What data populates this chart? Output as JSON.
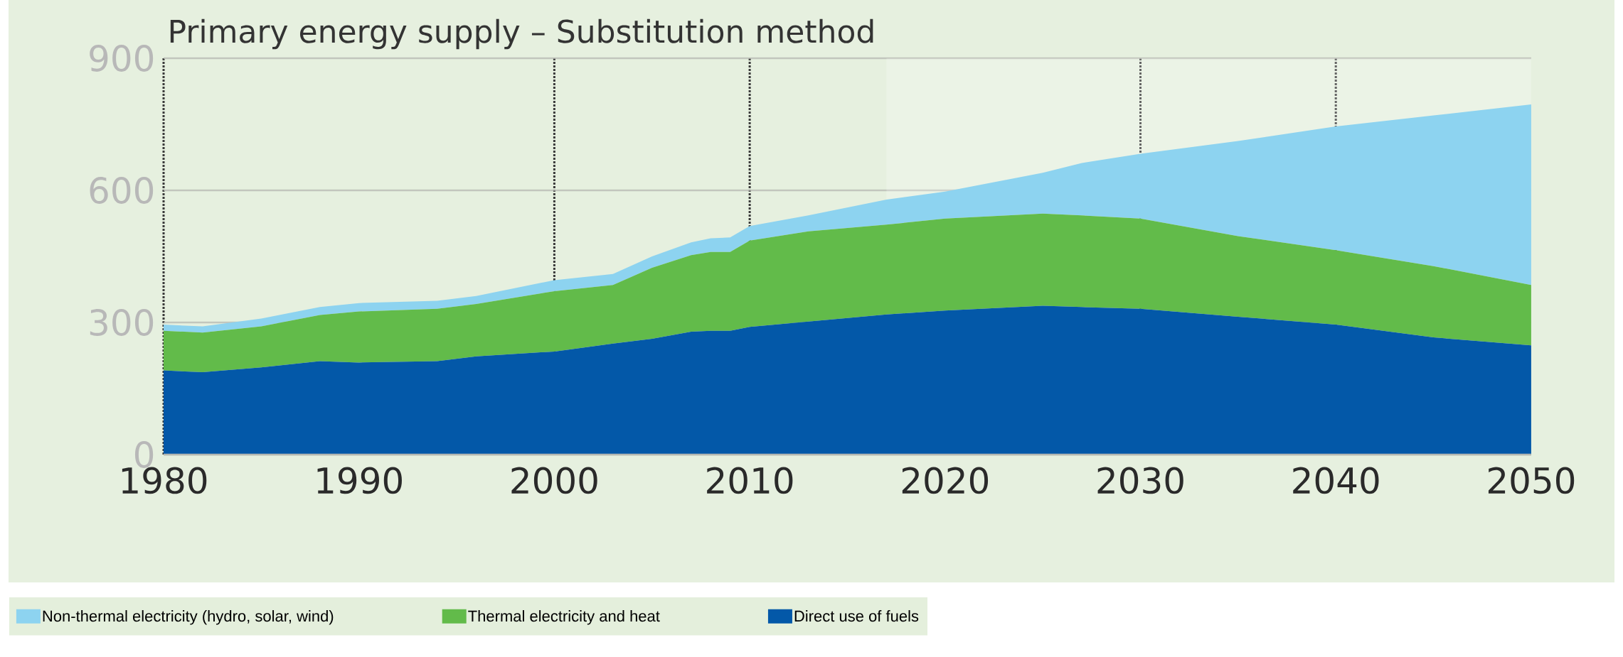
{
  "chart_data": {
    "type": "area",
    "stacked": true,
    "title": "Primary energy supply – Substitution method",
    "x": [
      1980,
      1982,
      1985,
      1988,
      1990,
      1994,
      1996,
      2000,
      2003,
      2005,
      2007,
      2008,
      2009,
      2010,
      2013,
      2017,
      2020,
      2025,
      2027,
      2030,
      2035,
      2040,
      2045,
      2050
    ],
    "series": [
      {
        "name": "Direct use of fuels",
        "color": "#0358a8",
        "values": [
          191,
          187,
          198,
          212,
          209,
          212,
          223,
          234,
          252,
          263,
          279,
          281,
          281,
          290,
          302,
          318,
          327,
          338,
          335,
          331,
          313,
          295,
          266,
          248
        ]
      },
      {
        "name": "Thermal electricity and heat",
        "color": "#62bb4a",
        "values": [
          90,
          90,
          93,
          105,
          116,
          119,
          119,
          137,
          133,
          161,
          174,
          179,
          179,
          196,
          205,
          204,
          209,
          209,
          208,
          205,
          183,
          169,
          162,
          137
        ]
      },
      {
        "name": "Non-thermal electricity (hydro, solar, wind)",
        "color": "#8dd3f0",
        "values": [
          14,
          14,
          18,
          18,
          19,
          18,
          18,
          25,
          25,
          26,
          29,
          31,
          33,
          33,
          36,
          57,
          61,
          93,
          119,
          147,
          216,
          281,
          342,
          410
        ]
      }
    ],
    "xlim": [
      1980,
      2050
    ],
    "xticks": [
      1980,
      1990,
      2000,
      2010,
      2020,
      2030,
      2040,
      2050
    ],
    "ylim": [
      0,
      900
    ],
    "yticks": [
      0,
      300,
      600,
      900
    ],
    "grid": "y",
    "legend": "bottom",
    "ref_lines": [
      {
        "axis": "x",
        "value": 2000,
        "line_style": "dotted",
        "color": "#3a3a3a"
      },
      {
        "axis": "x",
        "value": 2010,
        "line_style": "dotted",
        "color": "#3a3a3a"
      },
      {
        "axis": "x",
        "value": 2030,
        "line_style": "dotted",
        "color": "#3a3a3a"
      },
      {
        "axis": "x",
        "value": 2040,
        "line_style": "dotted",
        "color": "#3a3a3a"
      }
    ],
    "bands": [
      {
        "axis": "x",
        "from": 2017,
        "to": 2050,
        "color": "#ffffff"
      }
    ]
  }
}
